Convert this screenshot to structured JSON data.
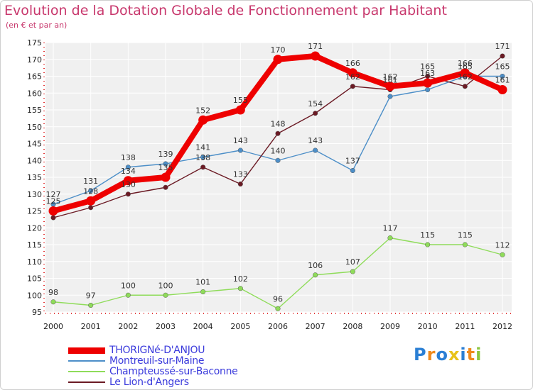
{
  "chart_data": {
    "type": "line",
    "title": "Evolution de la Dotation Globale de Fonctionnement par Habitant",
    "subtitle": "(en € et par an)",
    "xlabel": "",
    "ylabel": "",
    "ylim": [
      95,
      175
    ],
    "y_ticks": [
      95,
      100,
      105,
      110,
      115,
      120,
      125,
      130,
      135,
      140,
      145,
      150,
      155,
      160,
      165,
      170,
      175
    ],
    "categories": [
      "2000",
      "2001",
      "2002",
      "2003",
      "2004",
      "2005",
      "2006",
      "2007",
      "2008",
      "2009",
      "2010",
      "2011",
      "2012"
    ],
    "series": [
      {
        "name": "Montreuil-sur-Maine",
        "color": "#4d8fc8",
        "values": [
          127,
          131,
          138,
          139,
          141,
          143,
          140,
          143,
          137,
          159,
          161,
          165,
          165
        ],
        "labels": [
          "127",
          "131",
          "138",
          "139",
          "141",
          "143",
          "140",
          "143",
          "137",
          "",
          "",
          "165",
          "165"
        ]
      },
      {
        "name": "Le Lion-d'Angers",
        "color": "#6b1a24",
        "values": [
          123,
          126,
          130,
          132,
          138,
          133,
          148,
          154,
          162,
          161,
          165,
          162,
          171
        ],
        "labels": [
          "",
          "",
          "130",
          "",
          "138",
          "133",
          "148",
          "154",
          "162",
          "161",
          "165",
          "162",
          "171"
        ]
      },
      {
        "name": "THORIGNé-D'ANJOU",
        "color": "#ee0000",
        "values": [
          125,
          128,
          134,
          135,
          152,
          155,
          170,
          171,
          166,
          162,
          163,
          166,
          161
        ],
        "labels": [
          "125",
          "128",
          "134",
          "135",
          "152",
          "155",
          "170",
          "171",
          "166",
          "162",
          "163",
          "166",
          "161"
        ]
      },
      {
        "name": "Champteussé-sur-Baconne",
        "color": "#8fdc5a",
        "values": [
          98,
          97,
          100,
          100,
          101,
          102,
          96,
          106,
          107,
          117,
          115,
          115,
          112
        ],
        "labels": [
          "98",
          "97",
          "100",
          "100",
          "101",
          "102",
          "96",
          "106",
          "107",
          "117",
          "115",
          "115",
          "112"
        ]
      }
    ],
    "legend": [
      {
        "name": "THORIGNé-D'ANJOU",
        "color": "#ee0000",
        "thick": true
      },
      {
        "name": "Montreuil-sur-Maine",
        "color": "#4d8fc8",
        "thick": false
      },
      {
        "name": "Champteussé-sur-Baconne",
        "color": "#8fdc5a",
        "thick": false
      },
      {
        "name": "Le Lion-d'Angers",
        "color": "#6b1a24",
        "thick": false
      }
    ],
    "legend_position": "bottom-left",
    "grid": true
  },
  "brand": {
    "letters": [
      "P",
      "r",
      "o",
      "x",
      "i",
      "t",
      "i"
    ],
    "colors": [
      "#2b7fd4",
      "#f08a1c",
      "#2b7fd4",
      "#e8c21a",
      "#2b7fd4",
      "#f08a1c",
      "#8cc63f"
    ]
  }
}
